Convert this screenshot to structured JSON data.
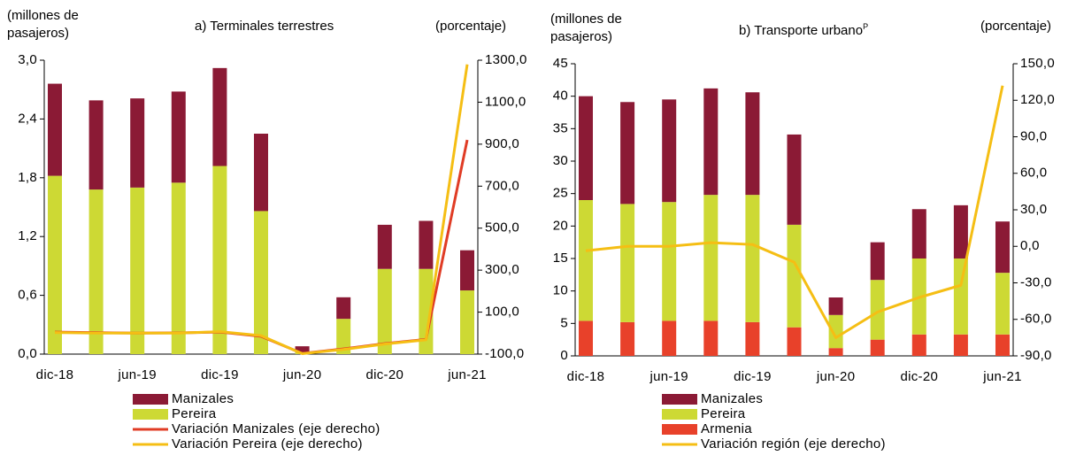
{
  "chart_data": [
    {
      "type": "bar",
      "title": "a) Terminales terrestres",
      "ylabel": "(millones de pasajeros)",
      "y2label": "(porcentaje)",
      "categories": [
        "dic-18",
        null,
        "jun-19",
        null,
        "dic-19",
        null,
        "jun-20",
        null,
        "dic-20",
        null,
        "jun-21"
      ],
      "ylim": [
        0,
        3.0
      ],
      "yticks": [
        {
          "value": 0,
          "label": "0,0"
        },
        {
          "value": 0.6,
          "label": "0,6"
        },
        {
          "value": 1.2,
          "label": "1,2"
        },
        {
          "value": 1.8,
          "label": "1,8"
        },
        {
          "value": 2.4,
          "label": "2,4"
        },
        {
          "value": 3.0,
          "label": "3,0"
        }
      ],
      "y2lim": [
        -100,
        1300
      ],
      "y2ticks": [
        {
          "value": -100,
          "label": "-100,0"
        },
        {
          "value": 100,
          "label": "100,0"
        },
        {
          "value": 300,
          "label": "300,0"
        },
        {
          "value": 500,
          "label": "500,0"
        },
        {
          "value": 700,
          "label": "700,0"
        },
        {
          "value": 900,
          "label": "900,0"
        },
        {
          "value": 1100,
          "label": "1100,0"
        },
        {
          "value": 1300,
          "label": "1300,0"
        }
      ],
      "series": [
        {
          "name": "Manizales",
          "type": "bar",
          "color": "#8b1a35",
          "values": [
            0.94,
            0.91,
            0.91,
            0.93,
            1.0,
            0.79,
            0.06,
            0.22,
            0.45,
            0.49,
            0.41
          ]
        },
        {
          "name": "Pereira",
          "type": "bar",
          "color": "#cdd934",
          "values": [
            1.82,
            1.68,
            1.7,
            1.75,
            1.92,
            1.46,
            0.02,
            0.36,
            0.87,
            0.87,
            0.65
          ]
        },
        {
          "name": "Variación Manizales (eje derecho)",
          "type": "line",
          "axis": "y2",
          "color": "#e03c25",
          "values": [
            5,
            2,
            0,
            1,
            5,
            -15,
            -97,
            -75,
            -50,
            -30,
            920
          ]
        },
        {
          "name": "Variación Pereira (eje derecho)",
          "type": "line",
          "axis": "y2",
          "color": "#f5be14",
          "values": [
            3,
            0,
            0,
            0,
            7,
            -12,
            -98,
            -78,
            -52,
            -32,
            1280
          ]
        }
      ]
    },
    {
      "type": "bar",
      "title": "b) Transporte urbano",
      "title_note": "P",
      "ylabel": "(millones de pasajeros)",
      "y2label": "(porcentaje)",
      "categories": [
        "dic-18",
        null,
        "jun-19",
        null,
        "dic-19",
        null,
        "jun-20",
        null,
        "dic-20",
        null,
        "jun-21"
      ],
      "ylim": [
        0,
        45
      ],
      "yticks": [
        0,
        5,
        10,
        15,
        20,
        25,
        30,
        35,
        40,
        45
      ],
      "y2lim": [
        -90,
        150
      ],
      "y2ticks": [
        {
          "value": -90,
          "label": "-90,0"
        },
        {
          "value": -60,
          "label": "-60,0"
        },
        {
          "value": -30,
          "label": "-30,0"
        },
        {
          "value": 0,
          "label": "0,0"
        },
        {
          "value": 30,
          "label": "30,0"
        },
        {
          "value": 60,
          "label": "60,0"
        },
        {
          "value": 90,
          "label": "90,0"
        },
        {
          "value": 120,
          "label": "120,0"
        },
        {
          "value": 150,
          "label": "150,0"
        }
      ],
      "series": [
        {
          "name": "Manizales",
          "type": "bar",
          "color": "#8b1a35",
          "values": [
            16.0,
            15.7,
            15.8,
            16.4,
            15.8,
            13.9,
            2.7,
            5.8,
            7.6,
            8.2,
            7.9
          ]
        },
        {
          "name": "Pereira",
          "type": "bar",
          "color": "#cdd934",
          "values": [
            18.6,
            18.2,
            18.3,
            19.4,
            19.6,
            15.8,
            5.1,
            9.2,
            11.7,
            11.7,
            9.5
          ]
        },
        {
          "name": "Armenia",
          "type": "bar",
          "color": "#e8412a",
          "values": [
            5.4,
            5.2,
            5.4,
            5.4,
            5.2,
            4.4,
            1.2,
            2.5,
            3.3,
            3.3,
            3.3
          ]
        },
        {
          "name": "Variación región (eje derecho)",
          "type": "line",
          "axis": "y2",
          "color": "#f5be14",
          "values": [
            -3.6,
            0,
            0,
            3,
            1.5,
            -13,
            -75,
            -54,
            -42,
            -32,
            132
          ]
        }
      ]
    }
  ]
}
